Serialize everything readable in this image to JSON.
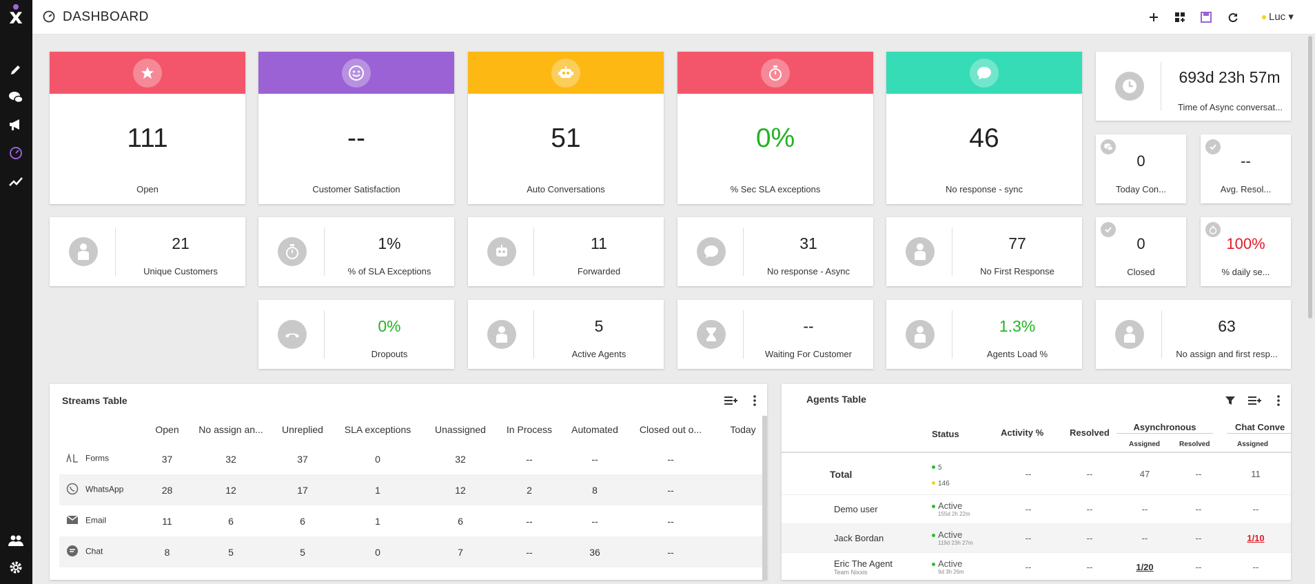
{
  "header": {
    "title": "DASHBOARD",
    "user": "Luc"
  },
  "colors": {
    "red": "#f3566a",
    "purple": "#9a62d4",
    "orange": "#fdb814",
    "teal": "#36dcb6",
    "green": "#22b322",
    "darkred": "#e01b25"
  },
  "big_cards": [
    {
      "value": "111",
      "label": "Open",
      "icon": "star-icon"
    },
    {
      "value": "--",
      "label": "Customer Satisfaction",
      "icon": "smiley-icon"
    },
    {
      "value": "51",
      "label": "Auto Conversations",
      "icon": "robot-icon"
    },
    {
      "value": "0%",
      "label": "% Sec SLA exceptions",
      "icon": "stopwatch-icon"
    },
    {
      "value": "46",
      "label": "No response - sync",
      "icon": "chat-bubble-icon"
    }
  ],
  "async_card": {
    "value": "693d 23h 57m",
    "label": "Time of Async conversat..."
  },
  "mini_cards": [
    {
      "value": "0",
      "label": "Today Con..."
    },
    {
      "value": "--",
      "label": "Avg. Resol..."
    },
    {
      "value": "0",
      "label": "Closed"
    },
    {
      "value": "100%",
      "label": "% daily se..."
    }
  ],
  "small_cards": [
    {
      "value": "21",
      "label": "Unique Customers"
    },
    {
      "value": "1%",
      "label": "% of SLA Exceptions"
    },
    {
      "value": "11",
      "label": "Forwarded"
    },
    {
      "value": "31",
      "label": "No response - Async"
    },
    {
      "value": "77",
      "label": "No First Response"
    },
    {
      "value": "0%",
      "label": "Dropouts"
    },
    {
      "value": "5",
      "label": "Active Agents"
    },
    {
      "value": "--",
      "label": "Waiting For Customer"
    },
    {
      "value": "1.3%",
      "label": "Agents Load %"
    },
    {
      "value": "63",
      "label": "No assign and first resp..."
    }
  ],
  "streams": {
    "title": "Streams Table",
    "columns": [
      "Open",
      "No assign an...",
      "Unreplied",
      "SLA exceptions",
      "Unassigned",
      "In Process",
      "Automated",
      "Closed out o...",
      "Today"
    ],
    "rows": [
      {
        "name": "Forms",
        "icon": "form-icon",
        "cells": [
          "37",
          "32",
          "37",
          "0",
          "32",
          "--",
          "--",
          "--",
          ""
        ]
      },
      {
        "name": "WhatsApp",
        "icon": "whatsapp-icon",
        "cells": [
          "28",
          "12",
          "17",
          "1",
          "12",
          "2",
          "8",
          "--",
          ""
        ]
      },
      {
        "name": "Email",
        "icon": "email-icon",
        "cells": [
          "11",
          "6",
          "6",
          "1",
          "6",
          "--",
          "--",
          "--",
          ""
        ]
      },
      {
        "name": "Chat",
        "icon": "chat-icon",
        "cells": [
          "8",
          "5",
          "5",
          "0",
          "7",
          "--",
          "36",
          "--",
          ""
        ]
      }
    ]
  },
  "agents": {
    "title": "Agents Table",
    "h_status": "Status",
    "h_activity": "Activity %",
    "h_resolved": "Resolved",
    "h_async": "Asynchronous",
    "h_chat": "Chat Conve",
    "h_assigned": "Assigned",
    "h_aresolved": "Resolved",
    "h_cassigned": "Assigned",
    "total": {
      "name": "Total",
      "active": "5",
      "away": "146",
      "activity": "--",
      "resolved": "--",
      "a_assigned": "47",
      "a_resolved": "--",
      "c_assigned": "11"
    },
    "rows": [
      {
        "name": "Demo user",
        "team": "",
        "status": "Active",
        "time": "155d 2h 22m",
        "activity": "--",
        "resolved": "--",
        "a_assigned": "--",
        "a_resolved": "--",
        "c_assigned": "--"
      },
      {
        "name": "Jack Bordan",
        "team": "",
        "status": "Active",
        "time": "119d 23h 27m",
        "activity": "--",
        "resolved": "--",
        "a_assigned": "--",
        "a_resolved": "--",
        "c_assigned": "1/10"
      },
      {
        "name": "Eric The Agent",
        "team": "Team Nixxis",
        "status": "Active",
        "time": "9d 3h 26m",
        "activity": "--",
        "resolved": "--",
        "a_assigned": "1/20",
        "a_resolved": "--",
        "c_assigned": "--"
      }
    ]
  }
}
